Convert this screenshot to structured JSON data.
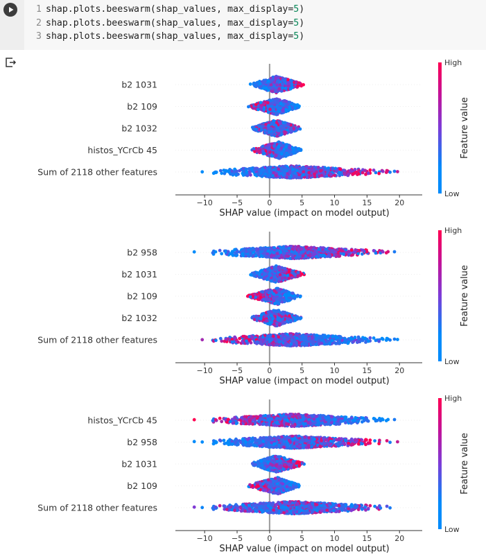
{
  "cell": {
    "run_button": "run-cell",
    "code_lines": [
      {
        "n": "1",
        "prefix": "shap.plots.beeswarm(shap_values, max_display=",
        "num": "5",
        "suffix": ")"
      },
      {
        "n": "2",
        "prefix": "shap.plots.beeswarm(shap_values, max_display=",
        "num": "5",
        "suffix": ")"
      },
      {
        "n": "3",
        "prefix": "shap.plots.beeswarm(shap_values, max_display=",
        "num": "5",
        "suffix": ")"
      }
    ],
    "output_icon": "output-redirect-icon"
  },
  "colors": {
    "low": "#008bfb",
    "mid": "#7c3cd8",
    "high": "#ff0052"
  },
  "chart_data": [
    {
      "type": "scatter",
      "subtype": "beeswarm",
      "xlabel": "SHAP value (impact on model output)",
      "xlim": [
        -14.5,
        23.5
      ],
      "xticks": [
        -10,
        -5,
        0,
        5,
        10,
        15,
        20
      ],
      "xtick_labels": [
        "−10",
        "−5",
        "0",
        "5",
        "10",
        "15",
        "20"
      ],
      "colorbar": {
        "title": "Feature value",
        "high": "High",
        "low": "Low"
      },
      "features": [
        {
          "name": "b2 1031",
          "min": -3,
          "max": 5.5,
          "center": 1,
          "high_side": "right"
        },
        {
          "name": "b2 109",
          "min": -3.5,
          "max": 4.8,
          "center": 1.2,
          "high_side": "left"
        },
        {
          "name": "b2 1032",
          "min": -3,
          "max": 5,
          "center": 1,
          "high_side": "mixed"
        },
        {
          "name": "histos_YCrCb 45",
          "min": -3,
          "max": 5,
          "center": 1.5,
          "high_side": "left"
        },
        {
          "name": "Sum of 2118 other features",
          "min": -13,
          "max": 21.5,
          "center": 3.5,
          "high_side": "right"
        }
      ]
    },
    {
      "type": "scatter",
      "subtype": "beeswarm",
      "xlabel": "SHAP value (impact on model output)",
      "xlim": [
        -14.5,
        23.5
      ],
      "xticks": [
        -10,
        -5,
        0,
        5,
        10,
        15,
        20
      ],
      "xtick_labels": [
        "−10",
        "−5",
        "0",
        "5",
        "10",
        "15",
        "20"
      ],
      "colorbar": {
        "title": "Feature value",
        "high": "High",
        "low": "Low"
      },
      "features": [
        {
          "name": "b2 958",
          "min": -13,
          "max": 21.5,
          "center": 3.5,
          "high_side": "right"
        },
        {
          "name": "b2 1031",
          "min": -3,
          "max": 5.5,
          "center": 1,
          "high_side": "right"
        },
        {
          "name": "b2 109",
          "min": -3.5,
          "max": 4.8,
          "center": 1.2,
          "high_side": "left"
        },
        {
          "name": "b2 1032",
          "min": -3,
          "max": 5,
          "center": 1,
          "high_side": "mixed"
        },
        {
          "name": "Sum of 2118 other features",
          "min": -13,
          "max": 21.5,
          "center": 3.5,
          "high_side": "left"
        }
      ]
    },
    {
      "type": "scatter",
      "subtype": "beeswarm",
      "xlabel": "SHAP value (impact on model output)",
      "xlim": [
        -14.5,
        23.5
      ],
      "xticks": [
        -10,
        -5,
        0,
        5,
        10,
        15,
        20
      ],
      "xtick_labels": [
        "−10",
        "−5",
        "0",
        "5",
        "10",
        "15",
        "20"
      ],
      "colorbar": {
        "title": "Feature value",
        "high": "High",
        "low": "Low"
      },
      "features": [
        {
          "name": "histos_YCrCb 45",
          "min": -13,
          "max": 21.5,
          "center": 3.5,
          "high_side": "left"
        },
        {
          "name": "b2 958",
          "min": -13,
          "max": 21.5,
          "center": 3.5,
          "high_side": "right"
        },
        {
          "name": "b2 1031",
          "min": -3,
          "max": 5.5,
          "center": 1,
          "high_side": "right"
        },
        {
          "name": "b2 109",
          "min": -3.5,
          "max": 4.8,
          "center": 1.2,
          "high_side": "left"
        },
        {
          "name": "Sum of 2118 other features",
          "min": -13,
          "max": 21.5,
          "center": 3.5,
          "high_side": "mixed"
        }
      ]
    }
  ]
}
